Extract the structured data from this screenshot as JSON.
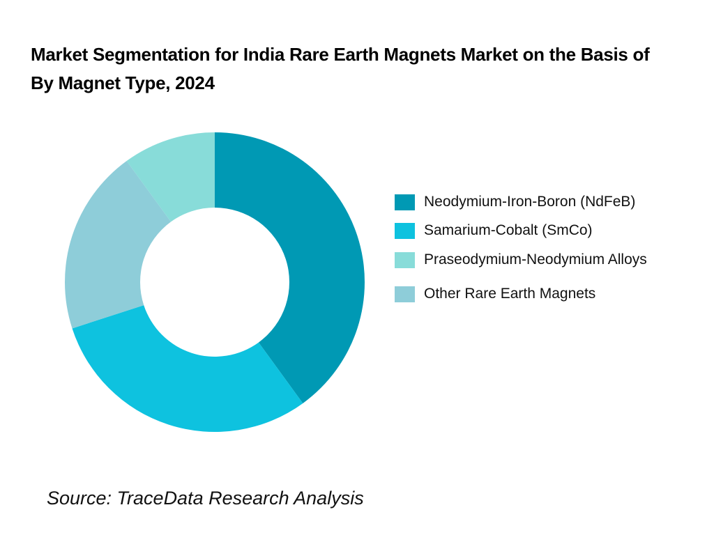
{
  "title": "Market Segmentation for India Rare Earth Magnets Market on the Basis of  By Magnet Type, 2024",
  "source": "Source: TraceData Research Analysis",
  "chart_data": {
    "type": "pie",
    "variant": "donut",
    "title": "Market Segmentation for India Rare Earth Magnets Market on the Basis of  By Magnet Type, 2024",
    "categories": [
      "Neodymium-Iron-Boron (NdFeB)",
      "Samarium-Cobalt (SmCo)",
      "Other Rare Earth Magnets",
      "Praseodymium-Neodymium Alloys"
    ],
    "values": [
      40,
      30,
      20,
      10
    ],
    "unit": "%",
    "colors": [
      "#0099b4",
      "#0ec2df",
      "#8ecdd9",
      "#88dcd9"
    ],
    "legend_position": "right",
    "legend": [
      {
        "label": "Neodymium-Iron-Boron (NdFeB)",
        "color": "#0099b4"
      },
      {
        "label": "Samarium-Cobalt (SmCo)",
        "color": "#0ec2df"
      },
      {
        "label": "Praseodymium-Neodymium Alloys",
        "color": "#88dcd9"
      },
      {
        "label": "Other Rare Earth Magnets",
        "color": "#8ecdd9"
      }
    ],
    "annotations": [
      "Source: TraceData Research Analysis"
    ]
  }
}
